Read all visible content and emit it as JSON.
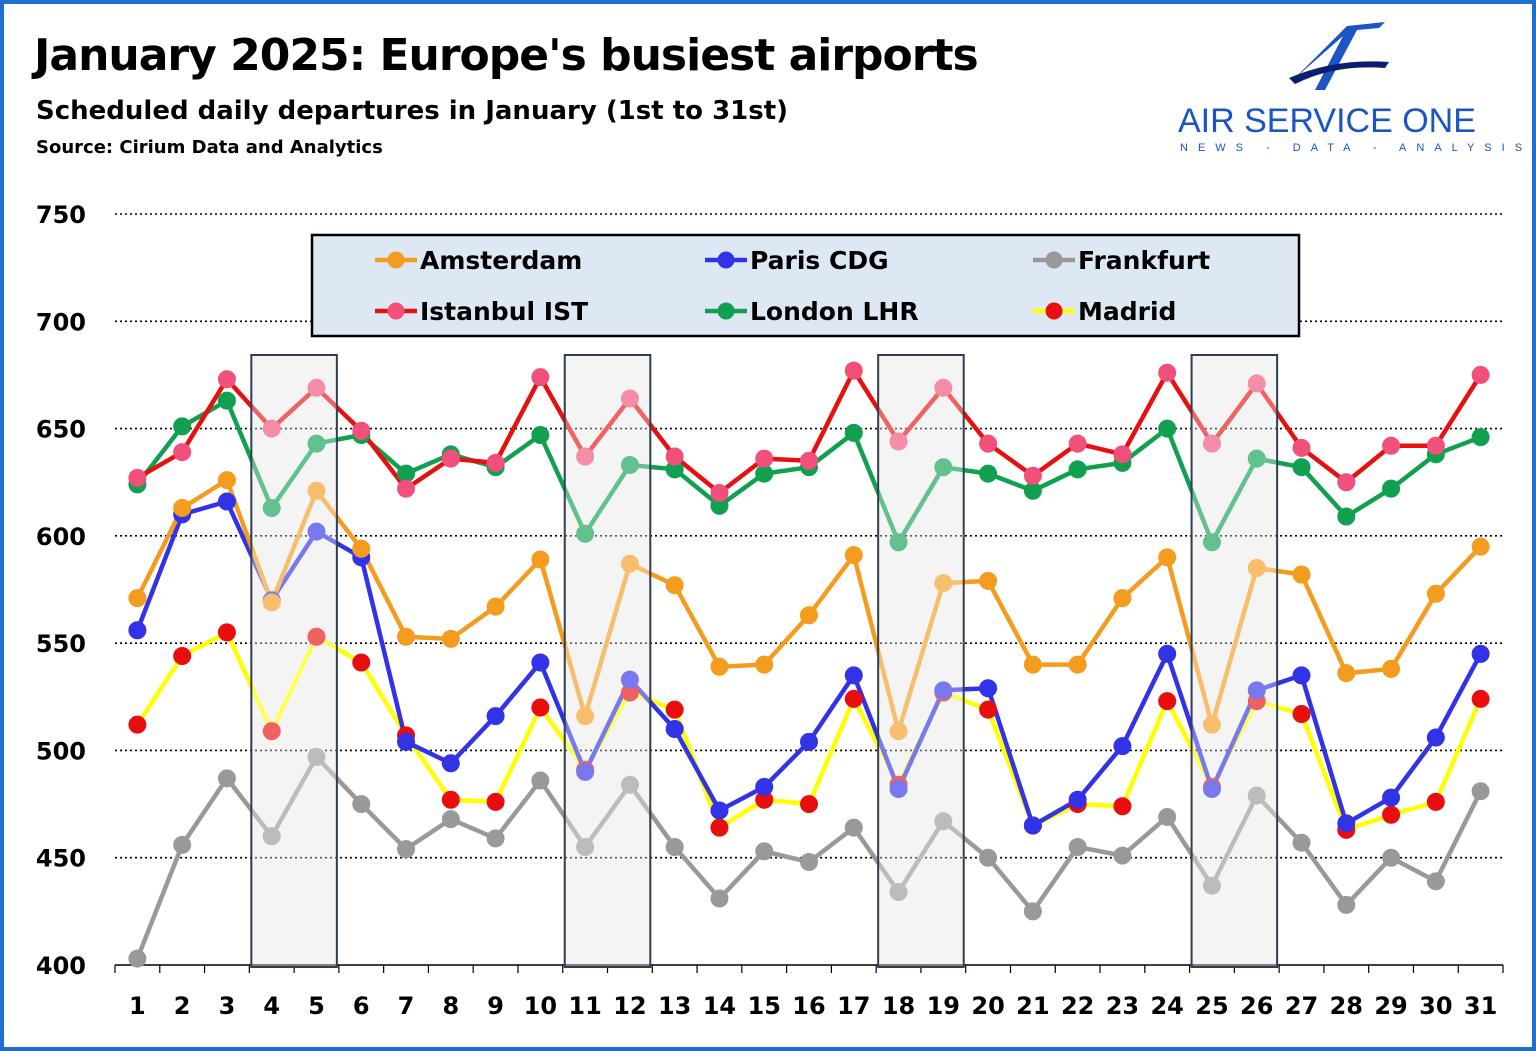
{
  "header": {
    "title": "January 2025: Europe's busiest airports",
    "subtitle": "Scheduled daily departures in January (1st to 31st)",
    "source": "Source: Cirium Data and Analytics"
  },
  "brand": {
    "name": "AIR SERVICE ONE",
    "tagline": "NEWS - DATA - ANALYSIS",
    "logo_icon": "plane-a-logo-icon",
    "color": "#1b54c4"
  },
  "colors": {
    "frame": "#1f6fd1",
    "legend_bg": "#dde8f4",
    "weekend_band": "#efefef"
  },
  "chart_data": {
    "type": "line",
    "x": [
      1,
      2,
      3,
      4,
      5,
      6,
      7,
      8,
      9,
      10,
      11,
      12,
      13,
      14,
      15,
      16,
      17,
      18,
      19,
      20,
      21,
      22,
      23,
      24,
      25,
      26,
      27,
      28,
      29,
      30,
      31
    ],
    "ylim": [
      400,
      750
    ],
    "yticks": [
      400,
      450,
      500,
      550,
      600,
      650,
      700,
      750
    ],
    "grid": true,
    "legend_position": "top",
    "highlighted_days": [
      [
        4,
        5
      ],
      [
        11,
        12
      ],
      [
        18,
        19
      ],
      [
        25,
        26
      ]
    ],
    "series": [
      {
        "name": "Amsterdam",
        "line_color": "#f39c1f",
        "marker_color": "#f39c1f",
        "values": [
          571,
          613,
          626,
          569,
          621,
          594,
          553,
          552,
          567,
          589,
          516,
          587,
          577,
          539,
          540,
          563,
          591,
          509,
          578,
          579,
          540,
          540,
          571,
          590,
          512,
          585,
          582,
          536,
          538,
          573,
          595
        ]
      },
      {
        "name": "Paris CDG",
        "line_color": "#3232e6",
        "marker_color": "#3232e6",
        "values": [
          556,
          610,
          616,
          570,
          602,
          590,
          504,
          494,
          516,
          541,
          490,
          533,
          510,
          472,
          483,
          504,
          535,
          482,
          528,
          529,
          465,
          477,
          502,
          545,
          482,
          528,
          535,
          466,
          478,
          506,
          545
        ]
      },
      {
        "name": "Frankfurt",
        "line_color": "#999999",
        "marker_color": "#999999",
        "values": [
          403,
          456,
          487,
          460,
          497,
          475,
          454,
          468,
          459,
          486,
          455,
          484,
          455,
          431,
          453,
          448,
          464,
          434,
          467,
          450,
          425,
          455,
          451,
          469,
          437,
          479,
          457,
          428,
          450,
          439,
          481
        ]
      },
      {
        "name": "Istanbul IST",
        "line_color": "#e51010",
        "marker_color": "#f0507a",
        "values": [
          627,
          639,
          673,
          650,
          669,
          649,
          622,
          636,
          634,
          674,
          637,
          664,
          637,
          620,
          636,
          635,
          677,
          644,
          669,
          643,
          628,
          643,
          638,
          676,
          643,
          671,
          641,
          625,
          642,
          642,
          675
        ]
      },
      {
        "name": "London LHR",
        "line_color": "#10a050",
        "marker_color": "#10a050",
        "values": [
          624,
          651,
          663,
          613,
          643,
          647,
          629,
          638,
          632,
          647,
          601,
          633,
          631,
          614,
          629,
          632,
          648,
          597,
          632,
          629,
          621,
          631,
          634,
          650,
          597,
          636,
          632,
          609,
          622,
          638,
          646
        ]
      },
      {
        "name": "Madrid",
        "line_color": "#ffff00",
        "marker_color": "#e80e0e",
        "values": [
          512,
          544,
          555,
          509,
          553,
          541,
          507,
          477,
          476,
          520,
          491,
          527,
          519,
          464,
          477,
          475,
          524,
          484,
          527,
          519,
          465,
          475,
          474,
          523,
          483,
          523,
          517,
          463,
          470,
          476,
          524
        ]
      }
    ]
  }
}
